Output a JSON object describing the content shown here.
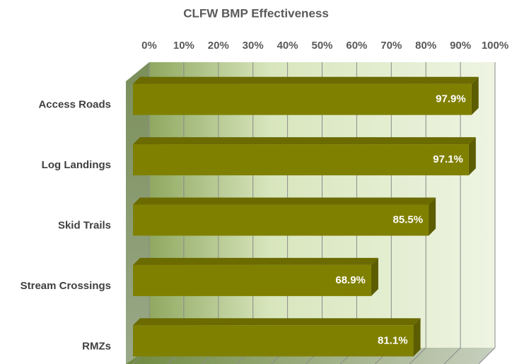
{
  "chart_data": {
    "type": "bar",
    "orientation": "horizontal",
    "title": "CLFW BMP Effectiveness",
    "categories": [
      "Access Roads",
      "Log Landings",
      "Skid Trails",
      "Stream Crossings",
      "RMZs"
    ],
    "values": [
      97.9,
      97.1,
      85.5,
      68.9,
      81.1
    ],
    "value_labels": [
      "97.9%",
      "97.1%",
      "85.5%",
      "68.9%",
      "81.1%"
    ],
    "color": "#808000",
    "xlim": [
      0,
      100
    ],
    "xticks": [
      {
        "value": 0,
        "label": "0%"
      },
      {
        "value": 10,
        "label": "10%"
      },
      {
        "value": 20,
        "label": "20%"
      },
      {
        "value": 30,
        "label": "30%"
      },
      {
        "value": 40,
        "label": "40%"
      },
      {
        "value": 50,
        "label": "50%"
      },
      {
        "value": 60,
        "label": "60%"
      },
      {
        "value": 70,
        "label": "70%"
      },
      {
        "value": 80,
        "label": "80%"
      },
      {
        "value": 90,
        "label": "90%"
      },
      {
        "value": 100,
        "label": "100%"
      }
    ],
    "grid": true
  }
}
